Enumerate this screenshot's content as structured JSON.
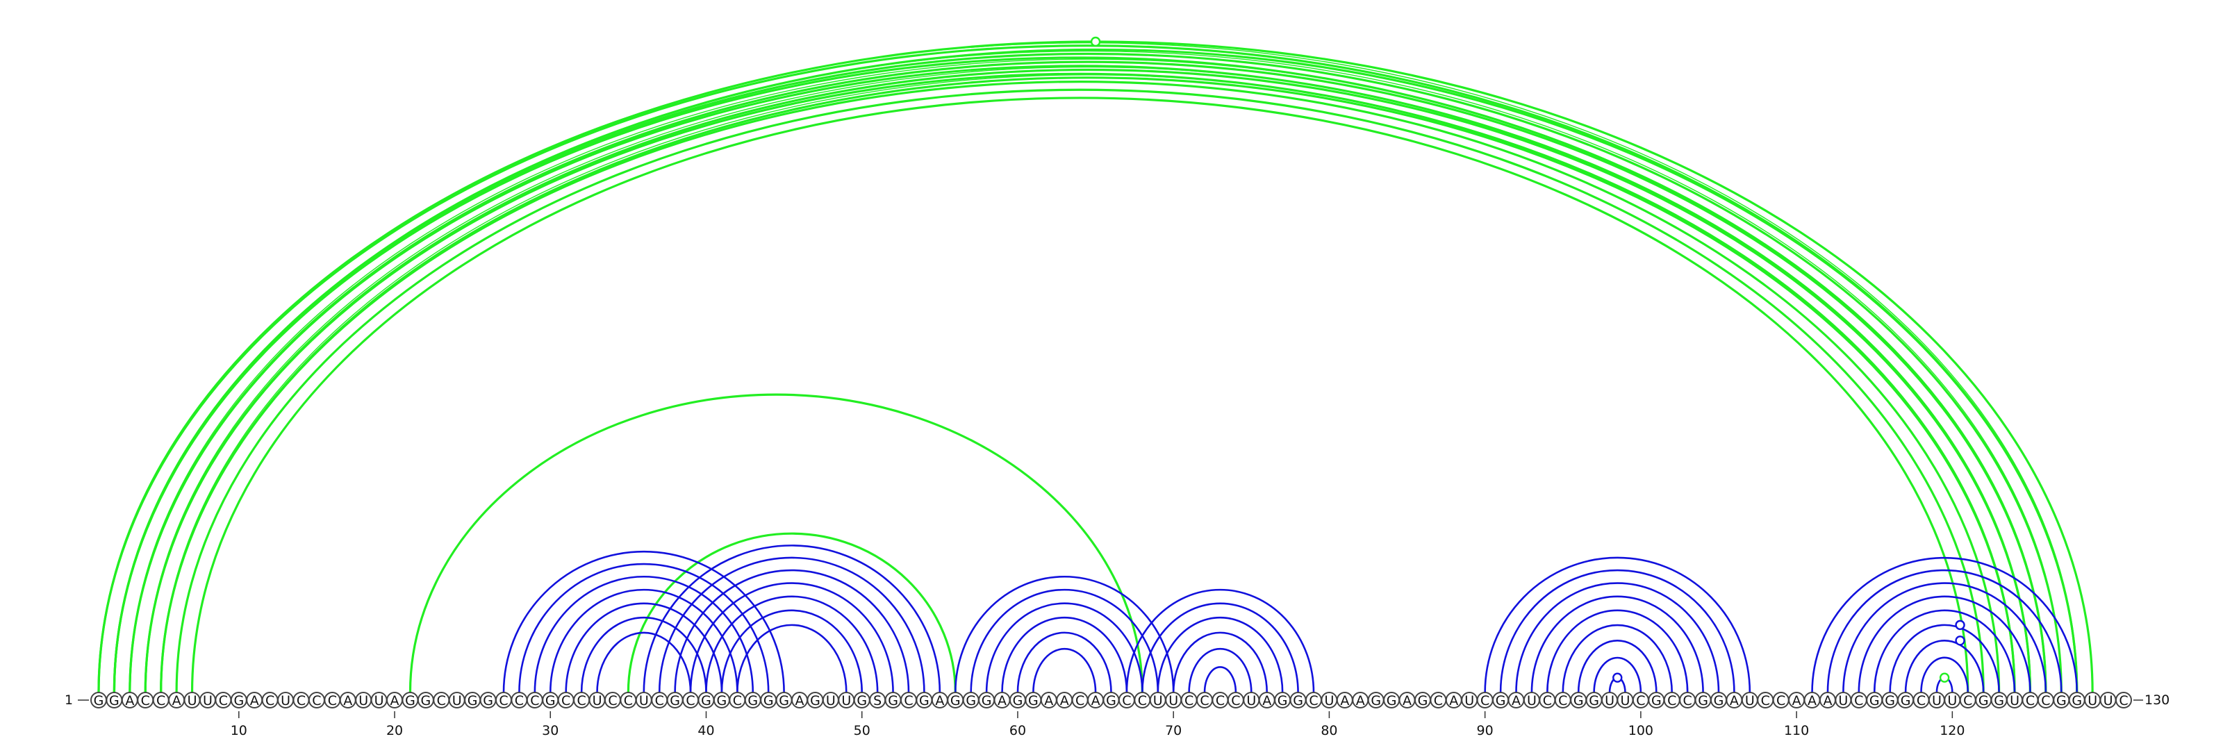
{
  "sequence": "GGACCAUUCGACUCCCAUUAGGCUGGCCCGCCUCCUCGCGGCGGGAGUUGSGCGAGGGAGGAACAGCCUUCCCCUAGGCUAAGGAGCAUCGAUCCGGUUCGCCGGAUCCAAAUCGGGCUUCGGUCCGGUUC",
  "start_label": "1",
  "end_label": "130",
  "ticks": [
    10,
    20,
    30,
    40,
    50,
    60,
    70,
    80,
    90,
    100,
    110,
    120
  ],
  "colors": {
    "long_range": "#22ee22",
    "local": "#1111dd",
    "nucleotide_outline": "#444444",
    "text": "#111111"
  },
  "arc_groups": [
    {
      "kind": "long_range",
      "pairs": [
        [
          1,
          128
        ],
        [
          2,
          127
        ],
        [
          3,
          126
        ],
        [
          4,
          125
        ],
        [
          5,
          124
        ]
      ],
      "top_doubled": true
    },
    {
      "kind": "long_range",
      "pairs": [
        [
          2,
          126
        ],
        [
          3,
          125
        ],
        [
          4,
          124
        ],
        [
          5,
          123
        ],
        [
          6,
          122
        ],
        [
          7,
          121
        ]
      ],
      "top_doubled": false
    },
    {
      "kind": "long_range",
      "pairs": [
        [
          1,
          129
        ],
        [
          2,
          128
        ]
      ],
      "top_doubled": false
    },
    {
      "kind": "long_range",
      "pairs": [
        [
          21,
          68
        ]
      ],
      "top_doubled": false
    },
    {
      "kind": "long_range",
      "pairs": [
        [
          35,
          56
        ]
      ],
      "top_doubled": false
    },
    {
      "kind": "local",
      "pairs": [
        [
          27,
          45
        ],
        [
          28,
          44
        ],
        [
          29,
          43
        ],
        [
          30,
          42
        ],
        [
          31,
          41
        ],
        [
          32,
          40
        ],
        [
          33,
          39
        ]
      ],
      "top_doubled": false
    },
    {
      "kind": "local",
      "pairs": [
        [
          36,
          55
        ],
        [
          37,
          54
        ],
        [
          38,
          53
        ],
        [
          39,
          52
        ],
        [
          40,
          51
        ],
        [
          41,
          50
        ],
        [
          42,
          49
        ]
      ],
      "top_doubled": false
    },
    {
      "kind": "local",
      "pairs": [
        [
          56,
          70
        ],
        [
          57,
          69
        ],
        [
          58,
          68
        ],
        [
          59,
          67
        ],
        [
          60,
          66
        ],
        [
          61,
          65
        ]
      ],
      "top_doubled": false
    },
    {
      "kind": "local",
      "pairs": [
        [
          67,
          79
        ],
        [
          68,
          78
        ],
        [
          69,
          77
        ],
        [
          70,
          76
        ],
        [
          71,
          75
        ],
        [
          72,
          74
        ]
      ],
      "top_doubled": false
    },
    {
      "kind": "local",
      "pairs": [
        [
          90,
          107
        ],
        [
          91,
          106
        ],
        [
          92,
          105
        ],
        [
          93,
          104
        ],
        [
          94,
          103
        ],
        [
          95,
          102
        ],
        [
          96,
          101
        ],
        [
          97,
          100
        ],
        [
          98,
          99
        ]
      ],
      "top_doubled": false
    },
    {
      "kind": "local",
      "pairs": [
        [
          111,
          128
        ],
        [
          112,
          127
        ],
        [
          113,
          126
        ],
        [
          114,
          125
        ],
        [
          115,
          124
        ],
        [
          116,
          123
        ],
        [
          117,
          122
        ],
        [
          118,
          121
        ],
        [
          119,
          120
        ]
      ],
      "top_doubled": false
    }
  ]
}
